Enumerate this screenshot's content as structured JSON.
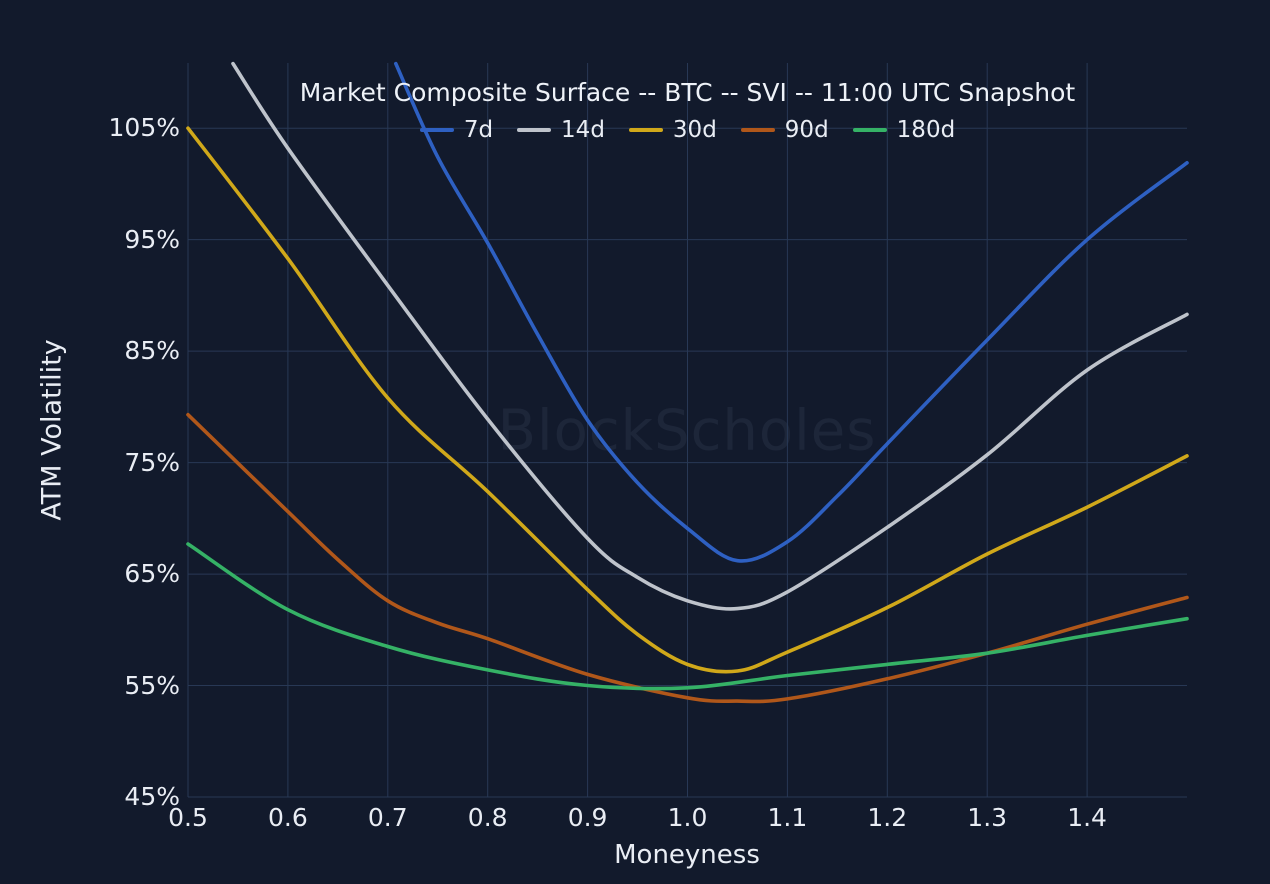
{
  "chart_data": {
    "type": "line",
    "title": "Market Composite Surface -- BTC -- SVI -- 11:00 UTC Snapshot",
    "watermark": "BlockScholes",
    "xlabel": "Moneyness",
    "ylabel": "ATM Volatility",
    "xlim": [
      0.5,
      1.5
    ],
    "ylim": [
      45,
      110.85
    ],
    "grid": true,
    "legend_position": "top-center",
    "x_tick_values": [
      0.5,
      0.6,
      0.7,
      0.8,
      0.9,
      1.0,
      1.1,
      1.2,
      1.3,
      1.4
    ],
    "x_tick_labels": [
      "0.5",
      "0.6",
      "0.7",
      "0.8",
      "0.9",
      "1.0",
      "1.1",
      "1.2",
      "1.3",
      "1.4"
    ],
    "y_tick_values": [
      105,
      95,
      85,
      75,
      65,
      55,
      45
    ],
    "y_tick_labels": [
      "105%",
      "95%",
      "85%",
      "75%",
      "65%",
      "55%",
      "45%"
    ],
    "colors": {
      "background": "#121a2c",
      "gridline": "#283855",
      "text": "#e9edf4"
    },
    "series": [
      {
        "name": "7d",
        "color": "#2e60c2",
        "points": [
          [
            0.708,
            110.8
          ],
          [
            0.75,
            102.4
          ],
          [
            0.8,
            94.7
          ],
          [
            0.85,
            86.5
          ],
          [
            0.9,
            78.8
          ],
          [
            0.95,
            73.2
          ],
          [
            1.0,
            69.1
          ],
          [
            1.05,
            66.2
          ],
          [
            1.1,
            67.9
          ],
          [
            1.15,
            72.0
          ],
          [
            1.2,
            76.7
          ],
          [
            1.3,
            86.0
          ],
          [
            1.4,
            95.0
          ],
          [
            1.5,
            101.9
          ]
        ]
      },
      {
        "name": "14d",
        "color": "#bec3cb",
        "points": [
          [
            0.545,
            110.8
          ],
          [
            0.6,
            103.2
          ],
          [
            0.7,
            90.9
          ],
          [
            0.8,
            78.9
          ],
          [
            0.9,
            68.2
          ],
          [
            0.95,
            64.7
          ],
          [
            1.0,
            62.6
          ],
          [
            1.05,
            61.9
          ],
          [
            1.1,
            63.4
          ],
          [
            1.2,
            69.2
          ],
          [
            1.3,
            75.7
          ],
          [
            1.4,
            83.3
          ],
          [
            1.5,
            88.3
          ]
        ]
      },
      {
        "name": "30d",
        "color": "#d0a81a",
        "points": [
          [
            0.5,
            105.0
          ],
          [
            0.6,
            93.3
          ],
          [
            0.7,
            80.8
          ],
          [
            0.8,
            72.4
          ],
          [
            0.9,
            63.6
          ],
          [
            0.95,
            59.6
          ],
          [
            1.0,
            56.9
          ],
          [
            1.05,
            56.3
          ],
          [
            1.1,
            58.0
          ],
          [
            1.2,
            62.0
          ],
          [
            1.3,
            66.8
          ],
          [
            1.4,
            71.0
          ],
          [
            1.5,
            75.6
          ]
        ]
      },
      {
        "name": "90d",
        "color": "#b0571a",
        "points": [
          [
            0.5,
            79.3
          ],
          [
            0.6,
            70.6
          ],
          [
            0.65,
            66.3
          ],
          [
            0.7,
            62.6
          ],
          [
            0.75,
            60.6
          ],
          [
            0.8,
            59.2
          ],
          [
            0.9,
            56.0
          ],
          [
            1.0,
            53.9
          ],
          [
            1.05,
            53.6
          ],
          [
            1.1,
            53.8
          ],
          [
            1.2,
            55.6
          ],
          [
            1.3,
            57.9
          ],
          [
            1.4,
            60.5
          ],
          [
            1.5,
            62.9
          ]
        ]
      },
      {
        "name": "180d",
        "color": "#35b266",
        "points": [
          [
            0.5,
            67.7
          ],
          [
            0.6,
            61.8
          ],
          [
            0.7,
            58.5
          ],
          [
            0.8,
            56.4
          ],
          [
            0.9,
            55.0
          ],
          [
            1.0,
            54.8
          ],
          [
            1.1,
            55.9
          ],
          [
            1.2,
            56.9
          ],
          [
            1.3,
            57.9
          ],
          [
            1.4,
            59.5
          ],
          [
            1.5,
            61.0
          ]
        ]
      }
    ]
  }
}
